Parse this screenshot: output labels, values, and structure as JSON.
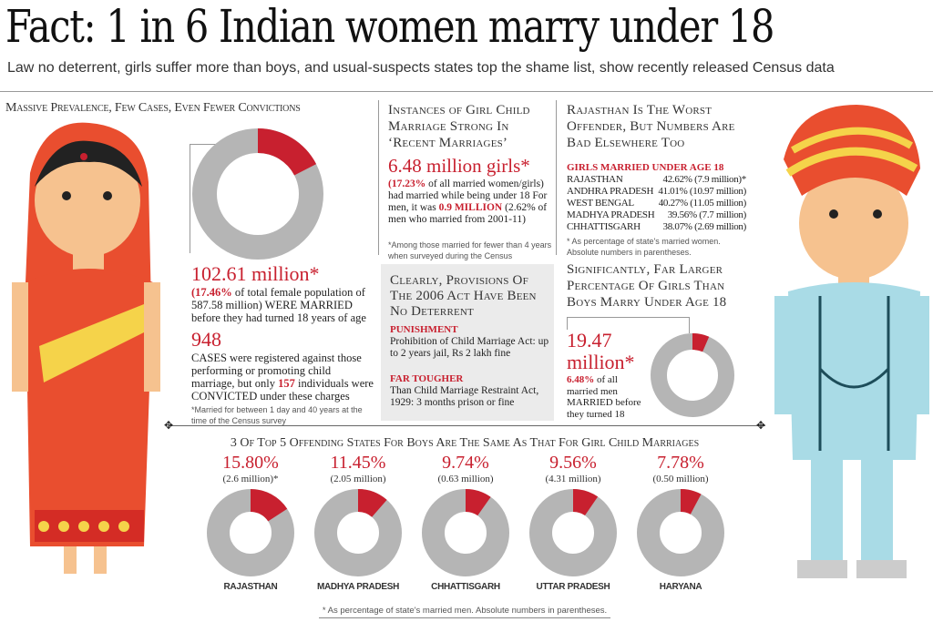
{
  "header": {
    "title": "Fact: 1 in 6 Indian women marry under 18",
    "subtitle": "Law no deterrent, girls suffer more than boys, and usual-suspects states top the shame list, show recently released Census data"
  },
  "left": {
    "heading": "Massive Prevalence, Few Cases, Even Fewer Convictions",
    "figure": "102.61 million*",
    "pct": "(17.46%",
    "desc1": " of total female population of 587.58 million) WERE MARRIED before they had turned 18 years of age",
    "cases": "948",
    "cases_desc1": "CASES were registered against those performing or promoting child marriage, but only ",
    "convicted": "157",
    "cases_desc2": " individuals were CONVICTED under these charges",
    "note": "*Married for between 1 day and 40 years at the time of the Census survey"
  },
  "middle": {
    "heading": "Instances of Girl Child Marriage Strong In ‘Recent Marriages’",
    "figure": "6.48 million girls*",
    "pct": "(17.23%",
    "desc1": " of all married women/girls) had married while being under 18 For men, it was ",
    "men": "0.9 MILLION",
    "desc2": " (2.62% of men who married from 2001-11)",
    "note": "*Among those married for fewer than 4 years when surveyed during the Census"
  },
  "box": {
    "heading": "Clearly, Provisions Of The 2006 Act Have Been No Deterrent",
    "p_label": "PUNISHMENT",
    "p_text": "Prohibition of Child Marriage Act: up to 2 years jail, Rs 2 lakh fine",
    "t_label": "FAR TOUGHER",
    "t_text": "Than Child Marriage Restraint Act, 1929: 3 months prison or fine"
  },
  "right": {
    "heading": "Rajasthan Is The Worst Offender, But Numbers Are Bad Elsewhere Too",
    "list_title": "GIRLS MARRIED UNDER AGE 18",
    "states": [
      {
        "name": "RAJASTHAN",
        "value": "42.62% (7.9 million)*"
      },
      {
        "name": "ANDHRA PRADESH",
        "value": "41.01% (10.97 million)"
      },
      {
        "name": "WEST BENGAL",
        "value": "40.27% (11.05 million)"
      },
      {
        "name": "MADHYA PRADESH",
        "value": "39.56% (7.7 million)"
      },
      {
        "name": "CHHATTISGARH",
        "value": "38.07% (2.69 million)"
      }
    ],
    "note": "* As percentage of state's married women. Absolute numbers in parentheses.",
    "heading2": "Significantly, Far Larger Percentage Of Girls Than Boys Marry Under Age 18",
    "figure": "19.47 million*",
    "pct": "6.48%",
    "desc": " of all married men MARRIED before they turned 18"
  },
  "bottom": {
    "heading": "3 Of Top 5 Offending States For Boys Are The Same As That For Girl Child Marriages",
    "note": "* As percentage of state's married men. Absolute numbers in parentheses.",
    "states": [
      {
        "pct": "15.80%",
        "abs": "(2.6 million)*",
        "name": "RAJASTHAN"
      },
      {
        "pct": "11.45%",
        "abs": "(2.05 million)",
        "name": "MADHYA PRADESH"
      },
      {
        "pct": "9.74%",
        "abs": "(0.63 million)",
        "name": "CHHATTISGARH"
      },
      {
        "pct": "9.56%",
        "abs": "(4.31 million)",
        "name": "UTTAR PRADESH"
      },
      {
        "pct": "7.78%",
        "abs": "(0.50 million)",
        "name": "HARYANA"
      }
    ]
  },
  "chart_data": [
    {
      "type": "pie",
      "title": "Women married before 18 (share of female population)",
      "values": [
        17.46,
        82.54
      ],
      "labels": [
        "Married under 18",
        "Other"
      ],
      "colors": [
        "#c8202f",
        "#b5b5b5"
      ]
    },
    {
      "type": "pie",
      "title": "Men married before 18",
      "values": [
        6.48,
        93.52
      ],
      "labels": [
        "Married under 18",
        "Other"
      ],
      "colors": [
        "#c8202f",
        "#b5b5b5"
      ]
    },
    {
      "type": "pie",
      "title": "Boys married under 18 by state",
      "categories": [
        "RAJASTHAN",
        "MADHYA PRADESH",
        "CHHATTISGARH",
        "UTTAR PRADESH",
        "HARYANA"
      ],
      "values": [
        15.8,
        11.45,
        9.74,
        9.56,
        7.78
      ],
      "colors": [
        "#c8202f",
        "#b5b5b5"
      ]
    }
  ]
}
